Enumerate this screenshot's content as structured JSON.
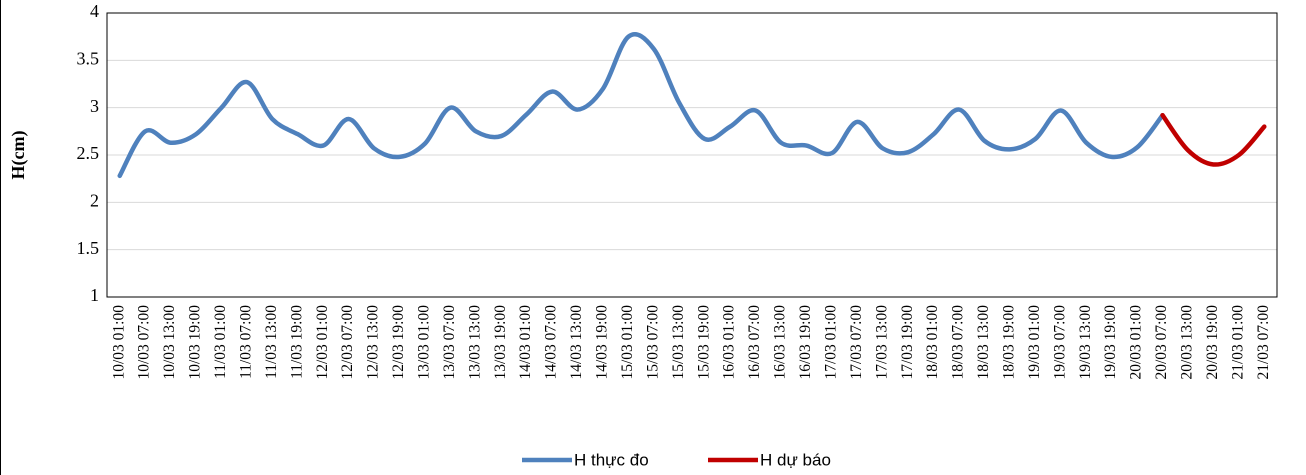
{
  "chart_data": {
    "type": "line",
    "ylabel": "H(cm)",
    "categories": [
      "10/03 01:00",
      "10/03 07:00",
      "10/03 13:00",
      "10/03 19:00",
      "11/03 01:00",
      "11/03 07:00",
      "11/03 13:00",
      "11/03 19:00",
      "12/03 01:00",
      "12/03 07:00",
      "12/03 13:00",
      "12/03 19:00",
      "13/03 01:00",
      "13/03 07:00",
      "13/03 13:00",
      "13/03 19:00",
      "14/03 01:00",
      "14/03 07:00",
      "14/03 13:00",
      "14/03 19:00",
      "15/03 01:00",
      "15/03 07:00",
      "15/03 13:00",
      "15/03 19:00",
      "16/03 01:00",
      "16/03 07:00",
      "16/03 13:00",
      "16/03 19:00",
      "17/03 01:00",
      "17/03 07:00",
      "17/03 13:00",
      "17/03 19:00",
      "18/03 01:00",
      "18/03 07:00",
      "18/03 13:00",
      "18/03 19:00",
      "19/03 01:00",
      "19/03 07:00",
      "19/03 13:00",
      "19/03 19:00",
      "20/03 01:00",
      "20/03 07:00",
      "20/03 13:00",
      "20/03 19:00",
      "21/03 01:00",
      "21/03 07:00"
    ],
    "series": [
      {
        "name": "H thực đo",
        "color": "#4f81bd",
        "values": [
          2.28,
          2.75,
          2.63,
          2.72,
          3.0,
          3.27,
          2.88,
          2.72,
          2.6,
          2.88,
          2.57,
          2.48,
          2.62,
          3.0,
          2.75,
          2.7,
          2.93,
          3.17,
          2.98,
          3.2,
          3.75,
          3.62,
          3.05,
          2.67,
          2.8,
          2.97,
          2.63,
          2.6,
          2.52,
          2.85,
          2.57,
          2.53,
          2.72,
          2.98,
          2.65,
          2.56,
          2.67,
          2.97,
          2.63,
          2.48,
          2.58,
          2.92,
          null,
          null,
          null,
          null
        ]
      },
      {
        "name": "H dự báo",
        "color": "#c00000",
        "values": [
          null,
          null,
          null,
          null,
          null,
          null,
          null,
          null,
          null,
          null,
          null,
          null,
          null,
          null,
          null,
          null,
          null,
          null,
          null,
          null,
          null,
          null,
          null,
          null,
          null,
          null,
          null,
          null,
          null,
          null,
          null,
          null,
          null,
          null,
          null,
          null,
          null,
          null,
          null,
          null,
          null,
          2.92,
          2.55,
          2.4,
          2.5,
          2.8
        ]
      }
    ],
    "ylim": [
      1,
      4
    ],
    "yticks": [
      1,
      1.5,
      2,
      2.5,
      3,
      3.5,
      4
    ],
    "grid": true,
    "legend": "bottom"
  }
}
